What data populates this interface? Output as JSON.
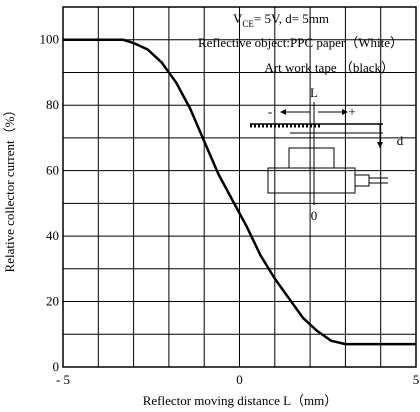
{
  "chart_data": {
    "type": "line",
    "xlabel": "Reflector moving distance L（mm）",
    "ylabel": "Relative collector current（%）",
    "xlim": [
      -5,
      5
    ],
    "ylim": [
      0,
      110
    ],
    "x_ticks": [
      {
        "value": -5,
        "label": "- 5"
      },
      {
        "value": 0,
        "label": "0"
      },
      {
        "value": 5,
        "label": "5"
      }
    ],
    "y_ticks": [
      {
        "value": 0,
        "label": "0"
      },
      {
        "value": 20,
        "label": "20"
      },
      {
        "value": 40,
        "label": "40"
      },
      {
        "value": 60,
        "label": "60"
      },
      {
        "value": 80,
        "label": "80"
      },
      {
        "value": 100,
        "label": "100"
      }
    ],
    "grid": true,
    "series": [
      {
        "x": [
          -5,
          -3.3,
          -3.0,
          -2.6,
          -2.2,
          -1.8,
          -1.4,
          -1.0,
          -0.6,
          -0.2,
          0.2,
          0.6,
          1.0,
          1.4,
          1.8,
          2.2,
          2.6,
          3.0,
          5.0
        ],
        "y": [
          100,
          100,
          99,
          97,
          93,
          87,
          79,
          69,
          59,
          51,
          43,
          34,
          27,
          21,
          15,
          11,
          8,
          7,
          7
        ]
      }
    ],
    "conditions": {
      "vce_label": "V",
      "vce_subscript": "CE",
      "vce_value": "= 5V, d= 5mm",
      "reflective_object": "Reflective object:PPC paper（White）",
      "art_work_tape": "Art work tape （black）"
    },
    "inset": {
      "l_label": "L",
      "minus_label": "-",
      "plus_label": "+",
      "d_label": "d",
      "zero_label": "0"
    }
  }
}
